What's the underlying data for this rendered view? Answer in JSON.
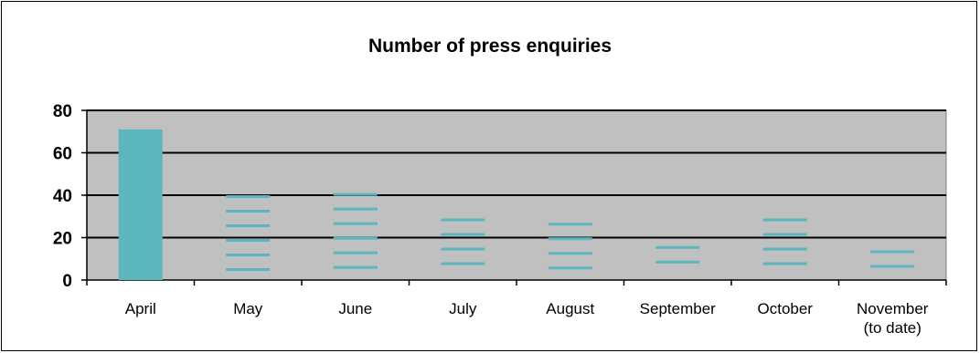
{
  "chart_data": {
    "type": "bar",
    "title": "Number of press enquiries",
    "xlabel": "",
    "ylabel": "",
    "ylim": [
      0,
      80
    ],
    "yticks": [
      0,
      20,
      40,
      60,
      80
    ],
    "grid": true,
    "categories": [
      "April",
      "May",
      "June",
      "July",
      "August",
      "September",
      "October",
      "November\n(to date)"
    ],
    "values": [
      71,
      40,
      41,
      29,
      27,
      16,
      29,
      14
    ],
    "fill_styles": [
      "solid",
      "dashed",
      "dashed",
      "dashed",
      "dashed",
      "dashed",
      "dashed",
      "dashed"
    ]
  },
  "colors": {
    "bar": "#5bb6bd",
    "plot_background": "#c0c0c0",
    "gridline": "#000000"
  }
}
